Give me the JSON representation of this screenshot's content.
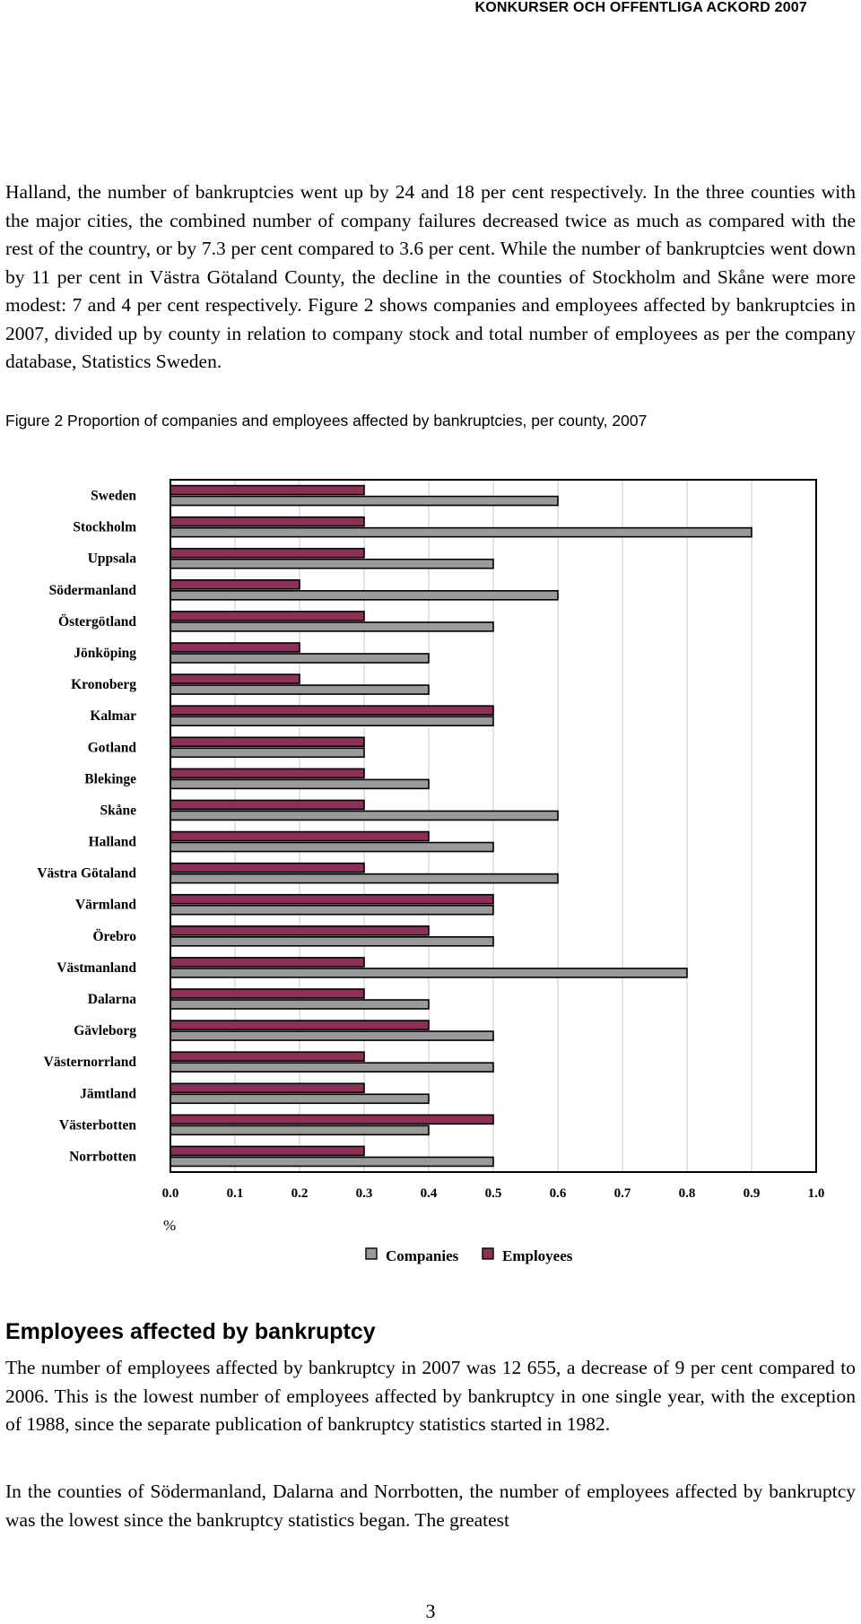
{
  "header": {
    "running_title": "KONKURSER OCH OFFENTLIGA ACKORD 2007"
  },
  "body": {
    "paragraph_1": "Halland, the number of bankruptcies went up by 24 and 18 per cent respectively. In the three counties with the major cities, the combined number of company failures decreased twice as much as compared with the rest of the country, or by 7.3 per cent compared to 3.6 per cent. While the number of bankruptcies went down by 11 per cent in Västra Götaland County, the decline in the counties of Stockholm and Skåne were more modest: 7 and 4 per cent respectively. Figure 2 shows companies and employees affected by bankruptcies in 2007, divided up by county in relation to company stock and total number of employees as per the company database, Statistics Sweden.",
    "figure_caption": "Figure 2 Proportion of companies and employees affected by bankruptcies, per county, 2007",
    "section_heading": "Employees affected by bankruptcy",
    "paragraph_2": "The number of employees affected by bankruptcy in 2007 was 12 655, a decrease of 9 per cent compared to 2006. This is the lowest number of employees affected by bankruptcy in one single year, with the exception of 1988, since the separate publication of bankruptcy statistics started in 1982.",
    "paragraph_3": "In the counties of Södermanland, Dalarna and Norrbotten, the number of employees affected by bankruptcy was the lowest since the bankruptcy statistics began. The greatest"
  },
  "footer": {
    "page_number": "3"
  },
  "chart_data": {
    "type": "bar",
    "orientation": "horizontal",
    "title": "",
    "xlabel": "%",
    "ylabel": "",
    "xlim": [
      0,
      1.0
    ],
    "xticks": [
      "0.0",
      "0.1",
      "0.2",
      "0.3",
      "0.4",
      "0.5",
      "0.6",
      "0.7",
      "0.8",
      "0.9",
      "1.0"
    ],
    "grid": "vertical",
    "legend_position": "bottom",
    "categories": [
      "Sweden",
      "Stockholm",
      "Uppsala",
      "Södermanland",
      "Östergötland",
      "Jönköping",
      "Kronoberg",
      "Kalmar",
      "Gotland",
      "Blekinge",
      "Skåne",
      "Halland",
      "Västra Götaland",
      "Värmland",
      "Örebro",
      "Västmanland",
      "Dalarna",
      "Gävleborg",
      "Västernorrland",
      "Jämtland",
      "Västerbotten",
      "Norrbotten"
    ],
    "series": [
      {
        "name": "Employees",
        "color": "#8e2f57",
        "values": [
          0.3,
          0.3,
          0.3,
          0.2,
          0.3,
          0.2,
          0.2,
          0.5,
          0.3,
          0.3,
          0.3,
          0.4,
          0.3,
          0.5,
          0.4,
          0.3,
          0.3,
          0.4,
          0.3,
          0.3,
          0.5,
          0.3
        ]
      },
      {
        "name": "Companies",
        "color": "#9a9a9a",
        "values": [
          0.6,
          0.9,
          0.5,
          0.6,
          0.5,
          0.4,
          0.4,
          0.5,
          0.3,
          0.4,
          0.6,
          0.5,
          0.6,
          0.5,
          0.5,
          0.8,
          0.4,
          0.5,
          0.5,
          0.4,
          0.4,
          0.5
        ]
      }
    ],
    "legend": [
      "Companies",
      "Employees"
    ]
  }
}
